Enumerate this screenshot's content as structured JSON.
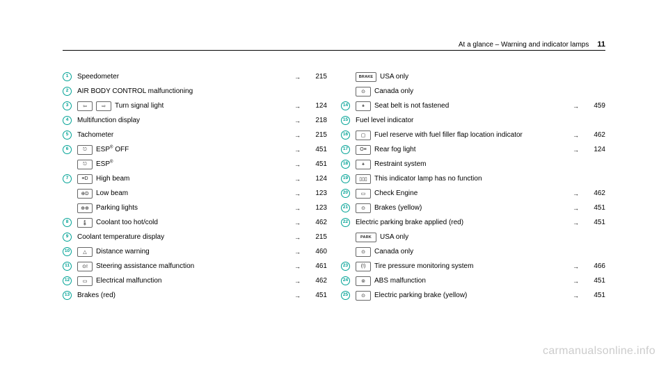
{
  "header": {
    "title": "At a glance – Warning and indicator lamps",
    "page_number": "11"
  },
  "watermark": "carmanualsonline.info",
  "left_column": [
    {
      "num": "1",
      "icons": [],
      "label": "Speedometer",
      "page": "215"
    },
    {
      "num": "2",
      "icons": [],
      "label": "AIR BODY CONTROL malfunctioning",
      "page": ""
    },
    {
      "num": "3",
      "icons": [
        "⇦",
        "⇨"
      ],
      "label": "Turn signal light",
      "page": "124"
    },
    {
      "num": "4",
      "icons": [],
      "label": "Multifunction display",
      "page": "218"
    },
    {
      "num": "5",
      "icons": [],
      "label": "Tachometer",
      "page": "215"
    },
    {
      "num": "6",
      "icons": [
        "⎋"
      ],
      "label": "ESP® OFF",
      "page": "451"
    },
    {
      "num": "",
      "icons": [
        "⎋"
      ],
      "label": "ESP®",
      "page": "451"
    },
    {
      "num": "7",
      "icons": [
        "≡D"
      ],
      "label": "High beam",
      "page": "124"
    },
    {
      "num": "",
      "icons": [
        "⊕D"
      ],
      "label": "Low beam",
      "page": "123"
    },
    {
      "num": "",
      "icons": [
        "⊕⊕"
      ],
      "label": "Parking lights",
      "page": "123"
    },
    {
      "num": "8",
      "icons": [
        "🌡"
      ],
      "label": "Coolant too hot/cold",
      "page": "462"
    },
    {
      "num": "9",
      "icons": [],
      "label": "Coolant temperature display",
      "page": "215"
    },
    {
      "num": "10",
      "icons": [
        "△"
      ],
      "label": "Distance warning",
      "page": "460"
    },
    {
      "num": "11",
      "icons": [
        "⊙!"
      ],
      "label": "Steering assistance malfunction",
      "page": "461"
    },
    {
      "num": "12",
      "icons": [
        "▭"
      ],
      "label": "Electrical malfunction",
      "page": "462"
    },
    {
      "num": "13",
      "icons": [],
      "label": "Brakes (red)",
      "page": "451"
    }
  ],
  "right_column": [
    {
      "num": "",
      "icons": [
        {
          "text": "BRAKE",
          "wide": true
        }
      ],
      "label": "USA only",
      "page": ""
    },
    {
      "num": "",
      "icons": [
        "⊙"
      ],
      "label": "Canada only",
      "page": ""
    },
    {
      "num": "14",
      "icons": [
        "⚹"
      ],
      "label": "Seat belt is not fastened",
      "page": "459"
    },
    {
      "num": "15",
      "icons": [],
      "label": "Fuel level indicator",
      "page": ""
    },
    {
      "num": "16",
      "icons": [
        "▢"
      ],
      "label": "Fuel reserve with fuel filler flap location indicator",
      "page": "462"
    },
    {
      "num": "17",
      "icons": [
        "O≡"
      ],
      "label": "Rear fog light",
      "page": "124"
    },
    {
      "num": "18",
      "icons": [
        "⚹"
      ],
      "label": "Restraint system",
      "page": ""
    },
    {
      "num": "19",
      "icons": [
        "▯▯▯"
      ],
      "label": "This indicator lamp has no function",
      "page": ""
    },
    {
      "num": "20",
      "icons": [
        "▭"
      ],
      "label": "Check Engine",
      "page": "462"
    },
    {
      "num": "21",
      "icons": [
        "⊙"
      ],
      "label": "Brakes (yellow)",
      "page": "451"
    },
    {
      "num": "22",
      "icons": [],
      "label": "Electric parking brake applied (red)",
      "page": "451"
    },
    {
      "num": "",
      "icons": [
        {
          "text": "PARK",
          "wide": true
        }
      ],
      "label": "USA only",
      "page": ""
    },
    {
      "num": "",
      "icons": [
        "⊙"
      ],
      "label": "Canada only",
      "page": ""
    },
    {
      "num": "23",
      "icons": [
        "(!)"
      ],
      "label": "Tire pressure monitoring system",
      "page": "466"
    },
    {
      "num": "24",
      "icons": [
        "⊚"
      ],
      "label": "ABS malfunction",
      "page": "451"
    },
    {
      "num": "25",
      "icons": [
        "⊙"
      ],
      "label": "Electric parking brake (yellow)",
      "page": "451"
    }
  ]
}
